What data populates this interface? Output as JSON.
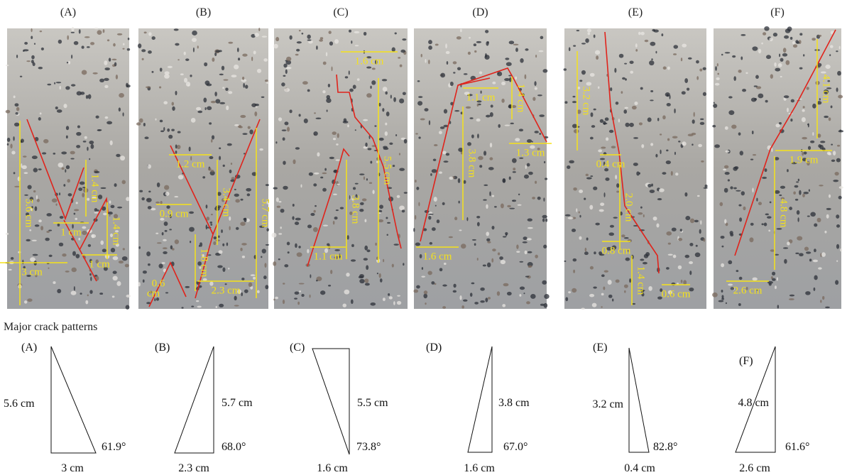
{
  "photos": [
    {
      "label": "(A)",
      "annotations": [
        "5.6 cm",
        "1.4 cm",
        "1 cm",
        "1.4 cm",
        "1 cm",
        "3 cm"
      ]
    },
    {
      "label": "(B)",
      "annotations": [
        "1.2 cm",
        "3.4 cm",
        "5.7 cm",
        "0.9 cm",
        "1.8 cm",
        "0.6",
        "cm",
        "2.3 cm"
      ]
    },
    {
      "label": "(C)",
      "annotations": [
        "1.6 cm",
        "5.5 cm",
        "3.8 cm",
        "1.1 cm"
      ]
    },
    {
      "label": "(D)",
      "annotations": [
        "1.1 cm",
        "1.4 cm",
        "1.3 cm",
        "3.8 cm",
        "1.6 cm"
      ]
    },
    {
      "label": "(E)",
      "annotations": [
        "3.2 cm",
        "0.4 cm",
        "2.0 cm",
        "0.8 cm",
        "1.4 cm",
        "0.6 cm"
      ]
    },
    {
      "label": "(F)",
      "annotations": [
        "4.1 cm",
        "1.9 cm",
        "4.8 cm",
        "2.6 cm"
      ]
    }
  ],
  "section_title": "Major crack patterns",
  "triangles": [
    {
      "label": "(A)",
      "height": "5.6 cm",
      "base": "3 cm",
      "angle": "61.9°"
    },
    {
      "label": "(B)",
      "height": "5.7 cm",
      "base": "2.3 cm",
      "angle": "68.0°"
    },
    {
      "label": "(C)",
      "height": "5.5 cm",
      "base": "1.6 cm",
      "angle": "73.8°"
    },
    {
      "label": "(D)",
      "height": "3.8 cm",
      "base": "1.6 cm",
      "angle": "67.0°"
    },
    {
      "label": "(E)",
      "height": "3.2 cm",
      "base": "0.4 cm",
      "angle": "82.8°"
    },
    {
      "label": "(F)",
      "height": "4.8 cm",
      "base": "2.6 cm",
      "angle": "61.6°"
    }
  ]
}
